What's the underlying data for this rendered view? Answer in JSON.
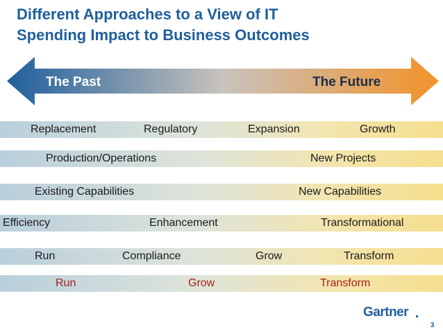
{
  "title": {
    "line1": "Different Approaches to a View of IT",
    "line2": "Spending Impact to Business Outcomes"
  },
  "arrow": {
    "left_label": "The Past",
    "right_label": "The Future",
    "colors": {
      "left": "#1f5f9c",
      "middle": "#c8c3bd",
      "right": "#f2922a"
    }
  },
  "rows": [
    {
      "labels": [
        "Replacement",
        "Regulatory",
        "Expansion",
        "Growth"
      ]
    },
    {
      "labels": [
        "Production/Operations",
        "New Projects"
      ]
    },
    {
      "labels": [
        "Existing Capabilities",
        "New Capabilities"
      ]
    },
    {
      "labels": [
        "Efficiency",
        "Enhancement",
        "Transformational"
      ]
    },
    {
      "labels": [
        "Run",
        "Compliance",
        "Grow",
        "Transform"
      ]
    },
    {
      "labels": [
        "Run",
        "Grow",
        "Transform"
      ],
      "color": "#a71d1d"
    }
  ],
  "footer": {
    "logo": "Gartner",
    "page_number": "3"
  }
}
